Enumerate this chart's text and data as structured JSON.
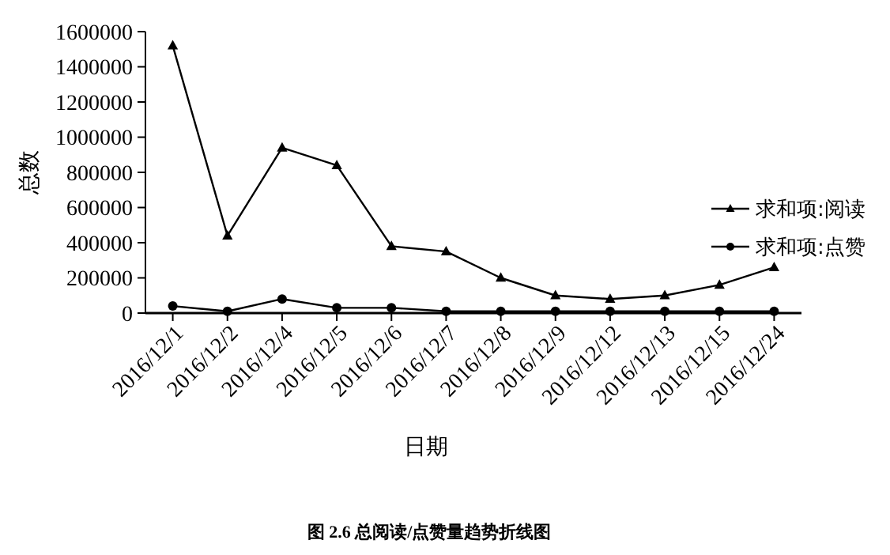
{
  "chart_data": {
    "type": "line",
    "xlabel": "日期",
    "ylabel": "总数",
    "categories": [
      "2016/12/1",
      "2016/12/2",
      "2016/12/4",
      "2016/12/5",
      "2016/12/6",
      "2016/12/7",
      "2016/12/8",
      "2016/12/9",
      "2016/12/12",
      "2016/12/13",
      "2016/12/15",
      "2016/12/24"
    ],
    "series": [
      {
        "name": "求和项:阅读",
        "color": "#000000",
        "marker": "triangle",
        "values": [
          1520000,
          440000,
          940000,
          840000,
          380000,
          350000,
          200000,
          100000,
          80000,
          100000,
          160000,
          260000
        ]
      },
      {
        "name": "求和项:点赞",
        "color": "#000000",
        "marker": "circle",
        "values": [
          40000,
          10000,
          80000,
          30000,
          30000,
          10000,
          10000,
          10000,
          10000,
          10000,
          10000,
          10000
        ]
      }
    ],
    "ylim": [
      0,
      1600000
    ],
    "yticks": [
      0,
      200000,
      400000,
      600000,
      800000,
      1000000,
      1200000,
      1400000,
      1600000
    ],
    "grid": false,
    "legend": "right",
    "line_style": "solid",
    "annotations": [
      "图 2.6  总阅读/点赞量趋势折线图"
    ]
  }
}
